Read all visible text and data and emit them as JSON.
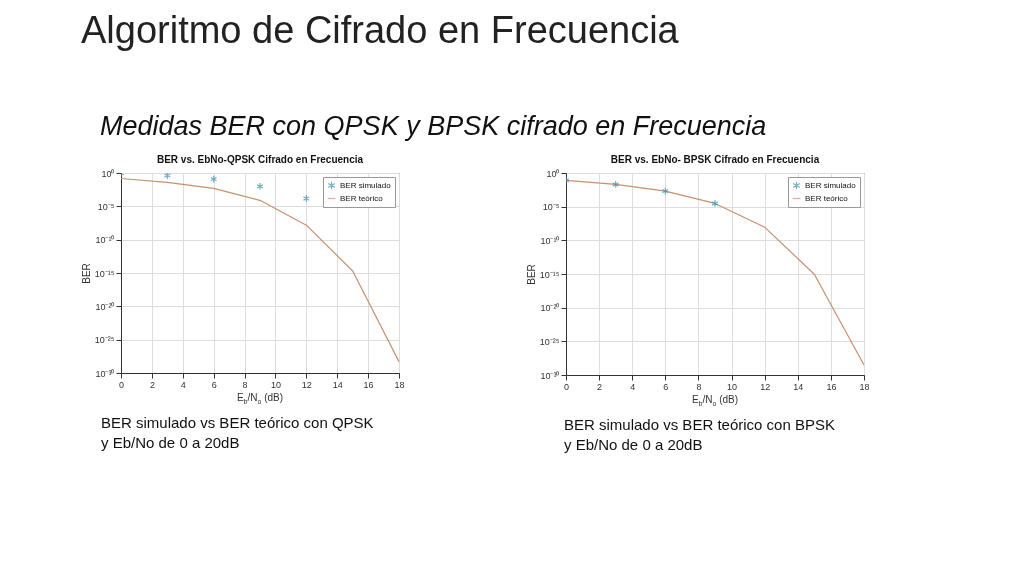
{
  "chart_data": [
    {
      "type": "other",
      "title": "Algoritmo de Cifrado en Frecuencia",
      "subtitle": "Medidas BER con QPSK y BPSK cifrado en Frecuencia"
    },
    {
      "type": "line",
      "title": "BER vs. EbNo-QPSK Cifrado en Frecuencia",
      "xlabel": "E$_{b}$/N$_{o}$ (dB)",
      "ylabel": "BER",
      "x": [
        0,
        3,
        6,
        9,
        12,
        15,
        18
      ],
      "series": [
        {
          "name": "BER simulado",
          "type": "scatter",
          "marker": "cross",
          "color": "#3a8fa8",
          "x": [
            0,
            3,
            6,
            9,
            12
          ],
          "values": [
            0.9,
            0.4,
            0.12,
            0.01,
            0.00015
          ]
        },
        {
          "name": "BER teórico",
          "type": "line",
          "marker": "none",
          "color": "#c8906e",
          "values": [
            0.15,
            0.04,
            0.005,
            8e-05,
            1.5e-08,
            2e-15,
            5e-29
          ]
        }
      ],
      "xlim": [
        0,
        18
      ],
      "xticks": [
        0,
        2,
        4,
        6,
        8,
        10,
        12,
        14,
        16,
        18
      ],
      "ylim": [
        1e-30,
        1
      ],
      "yticks": [
        {
          "value": 1e-30,
          "label": "10⁻³⁰"
        },
        {
          "value": 1e-25,
          "label": "10⁻²⁵"
        },
        {
          "value": 1e-20,
          "label": "10⁻²⁰"
        },
        {
          "value": 1e-15,
          "label": "10⁻¹⁵"
        },
        {
          "value": 1e-10,
          "label": "10⁻¹⁰"
        },
        {
          "value": 1e-05,
          "label": "10⁻⁵"
        },
        {
          "value": 1,
          "label": "10⁰"
        }
      ],
      "log": "y",
      "grid": true,
      "legend": "top right",
      "annotations": [
        "BER simulado vs BER teórico con QPSK\ny Eb/No de 0 a 20dB"
      ]
    },
    {
      "type": "line",
      "title": "BER vs. EbNo- BPSK Cifrado en Frecuencia",
      "xlabel": "E$_{b}$/N$_{o}$ (dB)",
      "ylabel": "BER",
      "x": [
        0,
        3,
        6,
        9,
        12,
        15,
        18
      ],
      "series": [
        {
          "name": "BER simulado",
          "type": "scatter",
          "marker": "cross",
          "color": "#3a8fa8",
          "x": [
            0,
            3,
            6,
            9
          ],
          "values": [
            0.08,
            0.02,
            0.002,
            3e-05
          ]
        },
        {
          "name": "BER teórico",
          "type": "line",
          "marker": "none",
          "color": "#c8906e",
          "values": [
            0.08,
            0.02,
            0.002,
            3e-05,
            9e-09,
            9e-16,
            3e-29
          ]
        }
      ],
      "xlim": [
        0,
        18
      ],
      "xticks": [
        0,
        2,
        4,
        6,
        8,
        10,
        12,
        14,
        16,
        18
      ],
      "ylim": [
        1e-30,
        1
      ],
      "yticks": [
        {
          "value": 1e-30,
          "label": "10⁻³⁰"
        },
        {
          "value": 1e-25,
          "label": "10⁻²⁵"
        },
        {
          "value": 1e-20,
          "label": "10⁻²⁰"
        },
        {
          "value": 1e-15,
          "label": "10⁻¹⁵"
        },
        {
          "value": 1e-10,
          "label": "10⁻¹⁰"
        },
        {
          "value": 1e-05,
          "label": "10⁻⁵"
        },
        {
          "value": 1,
          "label": "10⁰"
        }
      ],
      "log": "y",
      "grid": true,
      "legend": "top right",
      "annotations": [
        "BER simulado vs BER teórico con BPSK\ny Eb/No de 0 a 20dB"
      ]
    }
  ]
}
